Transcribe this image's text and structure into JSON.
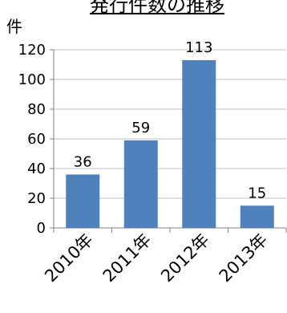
{
  "chart_data": {
    "type": "bar",
    "title": "発行件数の推移",
    "ylabel": "件",
    "xlabel": "",
    "categories": [
      "2010年",
      "2011年",
      "2012年",
      "2013年"
    ],
    "values": [
      36,
      59,
      113,
      15
    ],
    "data_labels": [
      "36",
      "59",
      "113",
      "15"
    ],
    "ylim": [
      0,
      120
    ],
    "yticks": [
      0,
      20,
      40,
      60,
      80,
      100,
      120
    ],
    "grid": true,
    "legend": "none",
    "colors": {
      "bar": "#4f81bd",
      "grid": "#bfbfbf",
      "axis": "#808080"
    }
  }
}
